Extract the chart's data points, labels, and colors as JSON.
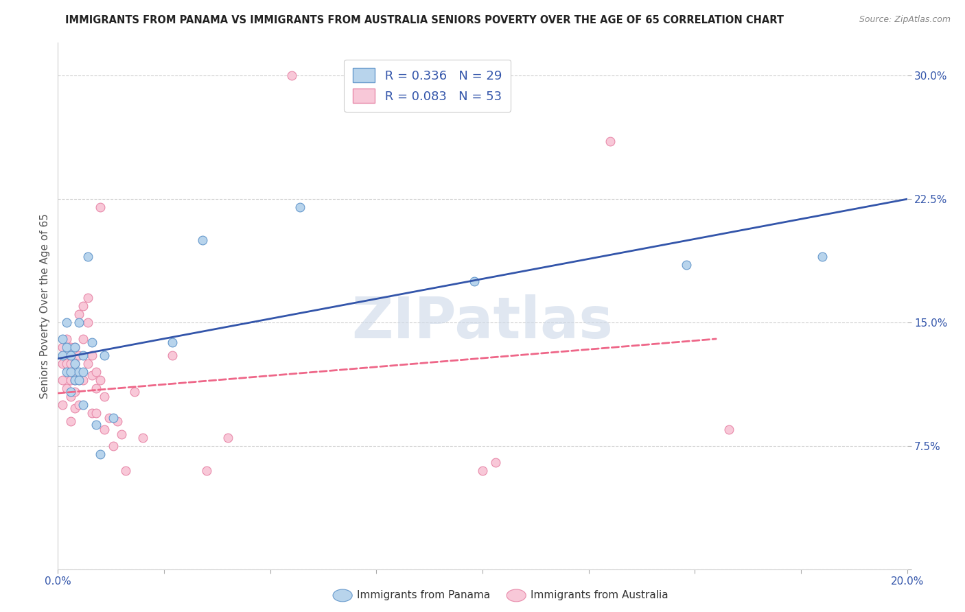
{
  "title": "IMMIGRANTS FROM PANAMA VS IMMIGRANTS FROM AUSTRALIA SENIORS POVERTY OVER THE AGE OF 65 CORRELATION CHART",
  "source": "Source: ZipAtlas.com",
  "ylabel": "Seniors Poverty Over the Age of 65",
  "xlim": [
    0,
    0.2
  ],
  "ylim": [
    0,
    0.32
  ],
  "xticks": [
    0.0,
    0.025,
    0.05,
    0.075,
    0.1,
    0.125,
    0.15,
    0.175,
    0.2
  ],
  "yticks": [
    0.0,
    0.075,
    0.15,
    0.225,
    0.3
  ],
  "yticklabels": [
    "",
    "7.5%",
    "15.0%",
    "22.5%",
    "30.0%"
  ],
  "grid_color": "#cccccc",
  "background_color": "#ffffff",
  "watermark_text": "ZIPatlas",
  "legend_R1": "R = 0.336",
  "legend_N1": "N = 29",
  "legend_R2": "R = 0.083",
  "legend_N2": "N = 53",
  "panama_color": "#b8d4ec",
  "panama_edge": "#6699cc",
  "australia_color": "#f8c8d8",
  "australia_edge": "#e88aaa",
  "panama_line_color": "#3355aa",
  "australia_line_color": "#ee6688",
  "panama_points_x": [
    0.001,
    0.001,
    0.002,
    0.002,
    0.002,
    0.003,
    0.003,
    0.003,
    0.004,
    0.004,
    0.004,
    0.005,
    0.005,
    0.005,
    0.006,
    0.006,
    0.006,
    0.007,
    0.008,
    0.009,
    0.01,
    0.011,
    0.013,
    0.027,
    0.034,
    0.057,
    0.098,
    0.148,
    0.18
  ],
  "panama_points_y": [
    0.14,
    0.13,
    0.15,
    0.135,
    0.12,
    0.13,
    0.12,
    0.108,
    0.135,
    0.125,
    0.115,
    0.15,
    0.12,
    0.115,
    0.13,
    0.12,
    0.1,
    0.19,
    0.138,
    0.088,
    0.07,
    0.13,
    0.092,
    0.138,
    0.2,
    0.22,
    0.175,
    0.185,
    0.19
  ],
  "australia_points_x": [
    0.001,
    0.001,
    0.001,
    0.001,
    0.002,
    0.002,
    0.002,
    0.002,
    0.003,
    0.003,
    0.003,
    0.003,
    0.003,
    0.004,
    0.004,
    0.004,
    0.004,
    0.004,
    0.005,
    0.005,
    0.005,
    0.005,
    0.006,
    0.006,
    0.006,
    0.007,
    0.007,
    0.007,
    0.008,
    0.008,
    0.008,
    0.009,
    0.009,
    0.009,
    0.01,
    0.01,
    0.011,
    0.011,
    0.012,
    0.013,
    0.014,
    0.015,
    0.016,
    0.018,
    0.02,
    0.027,
    0.035,
    0.04,
    0.055,
    0.1,
    0.103,
    0.13,
    0.158
  ],
  "australia_points_y": [
    0.135,
    0.125,
    0.115,
    0.1,
    0.14,
    0.13,
    0.125,
    0.11,
    0.135,
    0.125,
    0.115,
    0.105,
    0.09,
    0.135,
    0.125,
    0.115,
    0.108,
    0.098,
    0.155,
    0.13,
    0.115,
    0.1,
    0.16,
    0.14,
    0.115,
    0.165,
    0.15,
    0.125,
    0.13,
    0.118,
    0.095,
    0.12,
    0.11,
    0.095,
    0.22,
    0.115,
    0.105,
    0.085,
    0.092,
    0.075,
    0.09,
    0.082,
    0.06,
    0.108,
    0.08,
    0.13,
    0.06,
    0.08,
    0.3,
    0.06,
    0.065,
    0.26,
    0.085
  ],
  "panama_trend_x": [
    0.0,
    0.2
  ],
  "panama_trend_y": [
    0.128,
    0.225
  ],
  "australia_trend_x": [
    0.0,
    0.155
  ],
  "australia_trend_y": [
    0.107,
    0.14
  ],
  "marker_size": 85,
  "figsize": [
    14.06,
    8.92
  ],
  "dpi": 100
}
